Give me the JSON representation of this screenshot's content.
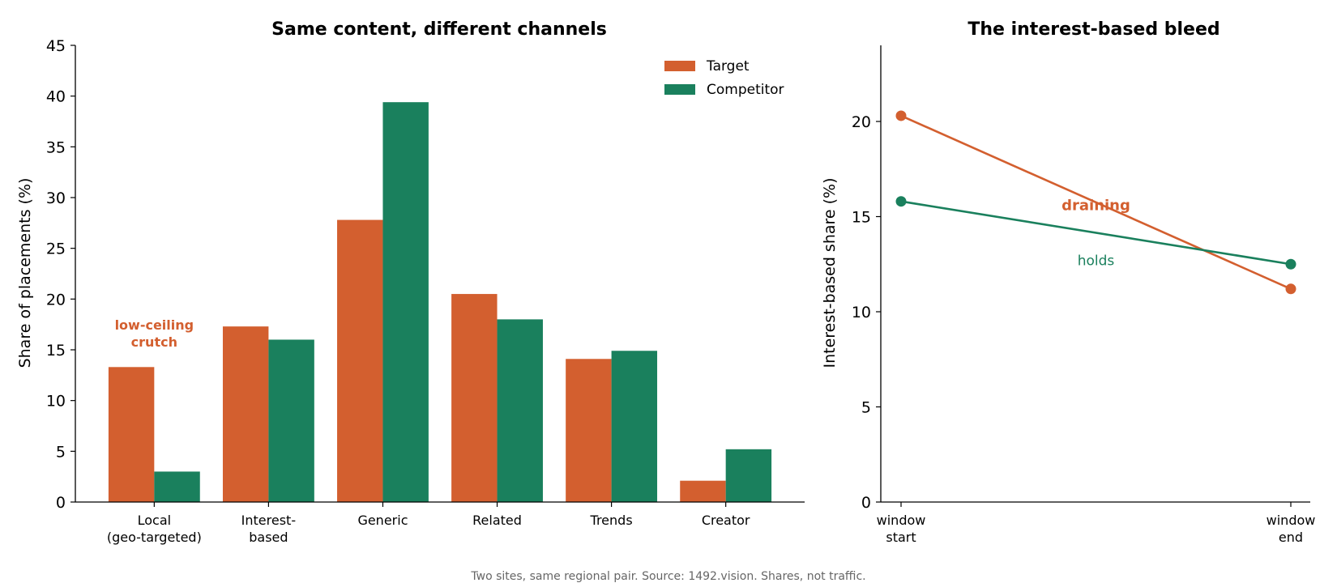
{
  "colors": {
    "target": "#D35F2F",
    "competitor": "#1A805D",
    "axis": "#000000",
    "caption": "#666666"
  },
  "caption": "Two sites, same regional pair. Source: 1492.vision. Shares, not traffic.",
  "chart_data": [
    {
      "type": "bar",
      "title": "Same content, different channels",
      "ylabel": "Share of placements (%)",
      "ylim": [
        0,
        45
      ],
      "yticks": [
        0,
        5,
        10,
        15,
        20,
        25,
        30,
        35,
        40,
        45
      ],
      "categories": [
        [
          "Local",
          "(geo-targeted)"
        ],
        [
          "Interest-",
          "based"
        ],
        [
          "Generic"
        ],
        [
          "Related"
        ],
        [
          "Trends"
        ],
        [
          "Creator"
        ]
      ],
      "series": [
        {
          "name": "Target",
          "color": "#D35F2F",
          "values": [
            13.3,
            17.3,
            27.8,
            20.5,
            14.1,
            2.1
          ]
        },
        {
          "name": "Competitor",
          "color": "#1A805D",
          "values": [
            3.0,
            16.0,
            39.4,
            18.0,
            14.9,
            5.2
          ]
        }
      ],
      "legend": "top-right",
      "annotations": [
        {
          "lines": [
            "low-ceiling",
            "crutch"
          ],
          "category_index": 0,
          "y": 15.3,
          "color": "#D35F2F"
        }
      ]
    },
    {
      "type": "line",
      "title": "The interest-based bleed",
      "ylabel": "Interest-based share (%)",
      "ylim": [
        0,
        24
      ],
      "yticks": [
        0,
        5,
        10,
        15,
        20
      ],
      "x": [
        [
          "window",
          "start"
        ],
        [
          "window",
          "end"
        ]
      ],
      "series": [
        {
          "name": "Target",
          "color": "#D35F2F",
          "values": [
            20.3,
            11.2
          ]
        },
        {
          "name": "Competitor",
          "color": "#1A805D",
          "values": [
            15.8,
            12.5
          ]
        }
      ],
      "annotations": [
        {
          "text": "draining",
          "x": 0.5,
          "y": 15.6,
          "color": "#D35F2F",
          "bold": true
        },
        {
          "text": "holds",
          "x": 0.5,
          "y": 12.7,
          "color": "#1A805D",
          "bold": false
        }
      ]
    }
  ]
}
